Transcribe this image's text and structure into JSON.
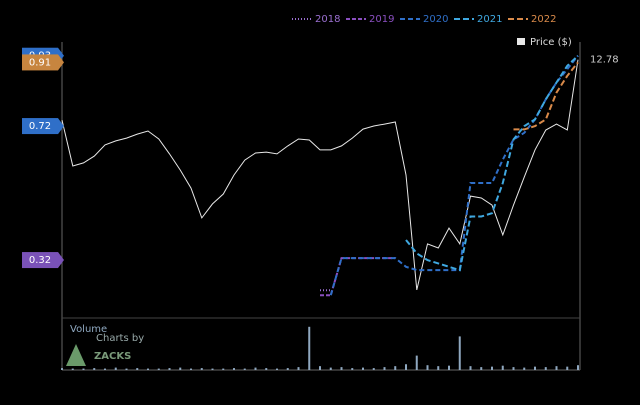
{
  "chart_data": {
    "type": "line",
    "price_name": "Price ($)",
    "price_color": "#e8e8e8",
    "price_label": 12.78,
    "values": [
      10.23,
      8.29,
      8.42,
      8.71,
      9.18,
      9.35,
      9.47,
      9.64,
      9.77,
      9.43,
      8.8,
      8.12,
      7.36,
      6.1,
      6.69,
      7.11,
      7.91,
      8.54,
      8.84,
      8.88,
      8.8,
      9.14,
      9.43,
      9.39,
      8.97,
      8.97,
      9.14,
      9.47,
      9.85,
      9.98,
      10.06,
      10.15,
      7.91,
      3.06,
      5.0,
      4.83,
      5.67,
      5.0,
      7.02,
      6.94,
      6.64,
      5.38,
      6.64,
      7.83,
      8.97,
      9.81,
      10.06,
      9.81,
      12.78
    ],
    "ylim": [
      2,
      13.4
    ],
    "y2lim": [
      0.156,
      0.962
    ],
    "series": [
      {
        "name": "2018",
        "color": "#9a6fd0",
        "dash": "1,2",
        "axis": "y2",
        "values": [
          null,
          null,
          null,
          null,
          null,
          null,
          null,
          null,
          null,
          null,
          null,
          null,
          null,
          null,
          null,
          null,
          null,
          null,
          null,
          null,
          null,
          null,
          null,
          null,
          0.23,
          0.23,
          null,
          null,
          null,
          null,
          null,
          null,
          null,
          null,
          null,
          null,
          null,
          null,
          null,
          null,
          null,
          null,
          null,
          null,
          null,
          null,
          null,
          null,
          null
        ]
      },
      {
        "name": "2019",
        "color": "#8a4fc0",
        "dash": "4,2",
        "axis": "y2",
        "values": [
          null,
          null,
          null,
          null,
          null,
          null,
          null,
          null,
          null,
          null,
          null,
          null,
          null,
          null,
          null,
          null,
          null,
          null,
          null,
          null,
          null,
          null,
          null,
          null,
          0.215,
          0.215,
          0.326,
          0.326,
          0.326,
          0.326,
          0.326,
          0.326,
          null,
          null,
          null,
          null,
          null,
          null,
          null,
          null,
          null,
          null,
          null,
          null,
          null,
          null,
          null,
          null,
          null
        ]
      },
      {
        "name": "2020",
        "color": "#2f6fc8",
        "dash": "5,3",
        "axis": "y2",
        "values": [
          null,
          null,
          null,
          null,
          null,
          null,
          null,
          null,
          null,
          null,
          null,
          null,
          null,
          null,
          null,
          null,
          null,
          null,
          null,
          null,
          null,
          null,
          null,
          null,
          null,
          0.215,
          0.326,
          0.326,
          0.326,
          0.326,
          0.326,
          0.326,
          0.3,
          0.29,
          0.29,
          0.29,
          0.29,
          0.29,
          0.55,
          0.55,
          0.55,
          0.62,
          0.68,
          0.7,
          0.74,
          0.8,
          0.85,
          0.89,
          0.93
        ]
      },
      {
        "name": "2021",
        "color": "#3fa8e0",
        "dash": "6,3",
        "axis": "y2",
        "values": [
          null,
          null,
          null,
          null,
          null,
          null,
          null,
          null,
          null,
          null,
          null,
          null,
          null,
          null,
          null,
          null,
          null,
          null,
          null,
          null,
          null,
          null,
          null,
          null,
          null,
          null,
          null,
          null,
          null,
          null,
          null,
          null,
          0.38,
          0.34,
          0.32,
          0.31,
          0.3,
          0.29,
          0.45,
          0.45,
          0.46,
          0.55,
          0.68,
          0.72,
          0.74,
          0.8,
          0.85,
          0.9,
          0.93
        ]
      },
      {
        "name": "2022",
        "color": "#d98a4a",
        "dash": "6,3",
        "axis": "y2",
        "values": [
          null,
          null,
          null,
          null,
          null,
          null,
          null,
          null,
          null,
          null,
          null,
          null,
          null,
          null,
          null,
          null,
          null,
          null,
          null,
          null,
          null,
          null,
          null,
          null,
          null,
          null,
          null,
          null,
          null,
          null,
          null,
          null,
          null,
          null,
          null,
          null,
          null,
          null,
          null,
          null,
          null,
          null,
          0.71,
          0.71,
          0.72,
          0.74,
          0.82,
          0.87,
          0.91
        ]
      }
    ],
    "left_labels": [
      {
        "value": 0.93,
        "color": "#2f6fc8"
      },
      {
        "value": 0.91,
        "color": "#c7853f"
      },
      {
        "value": 0.72,
        "color": "#2f6fc8"
      },
      {
        "value": 0.32,
        "color": "#7a52b8"
      }
    ],
    "volume_title": "Volume",
    "volume_color": "#8fa8c0",
    "vlim": [
      0,
      100
    ],
    "volume": [
      4,
      3,
      3,
      4,
      3,
      5,
      3,
      4,
      3,
      3,
      4,
      5,
      3,
      4,
      3,
      3,
      4,
      3,
      5,
      4,
      3,
      4,
      6,
      90,
      8,
      5,
      6,
      4,
      5,
      4,
      6,
      8,
      12,
      30,
      10,
      8,
      9,
      70,
      8,
      6,
      7,
      9,
      6,
      5,
      7,
      6,
      8,
      7,
      10
    ],
    "credit": "Charts by",
    "brand": "ZACKS"
  }
}
